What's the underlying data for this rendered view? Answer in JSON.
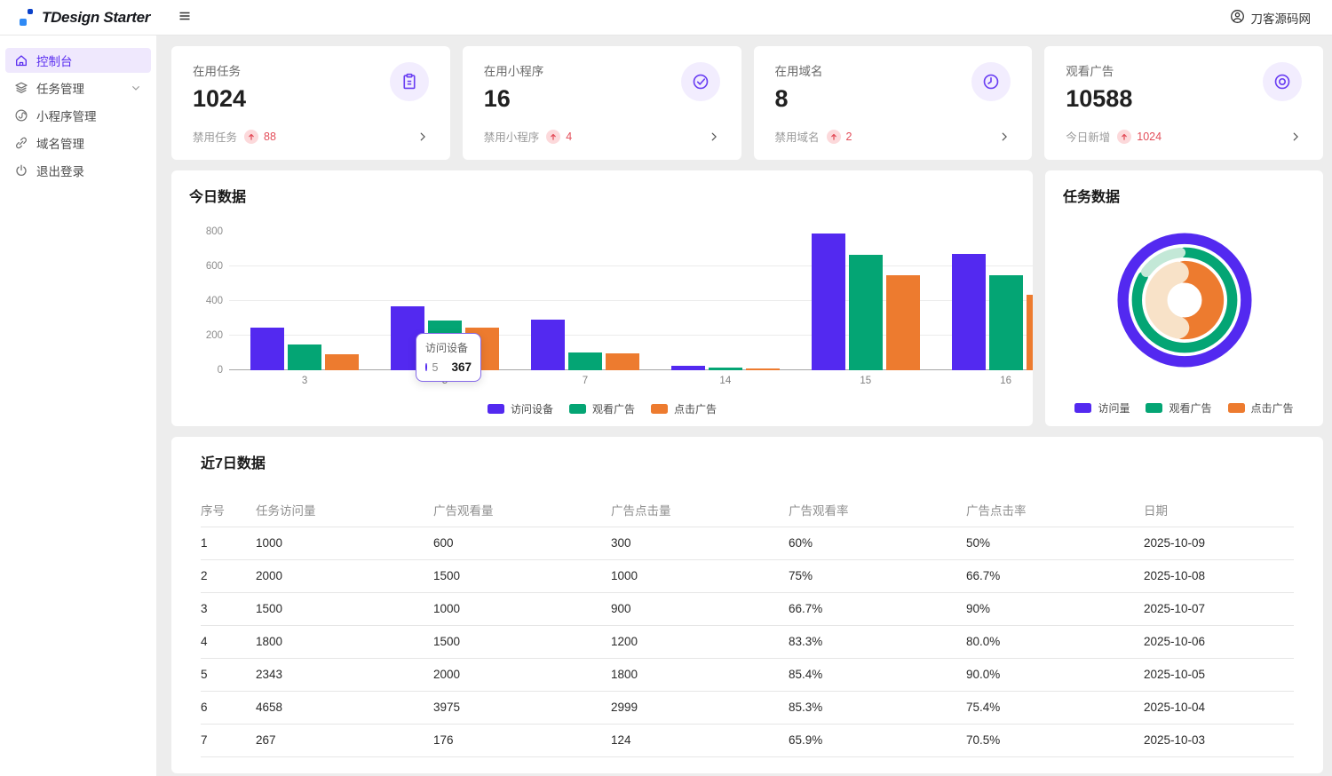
{
  "header": {
    "logo_text": "TDesign Starter",
    "user_name": "刀客源码网"
  },
  "sidebar": {
    "items": [
      {
        "label": "控制台",
        "icon": "home-icon",
        "active": true,
        "has_chevron": false
      },
      {
        "label": "任务管理",
        "icon": "layers-icon",
        "active": false,
        "has_chevron": true
      },
      {
        "label": "小程序管理",
        "icon": "miniprogram-icon",
        "active": false,
        "has_chevron": false
      },
      {
        "label": "域名管理",
        "icon": "link-icon",
        "active": false,
        "has_chevron": false
      },
      {
        "label": "退出登录",
        "icon": "power-icon",
        "active": false,
        "has_chevron": false
      }
    ]
  },
  "stat_cards": [
    {
      "label": "在用任务",
      "value": "1024",
      "footer_label": "禁用任务",
      "trend_value": "88",
      "icon": "clipboard-icon"
    },
    {
      "label": "在用小程序",
      "value": "16",
      "footer_label": "禁用小程序",
      "trend_value": "4",
      "icon": "check-circle-icon"
    },
    {
      "label": "在用域名",
      "value": "8",
      "footer_label": "禁用域名",
      "trend_value": "2",
      "icon": "clock-icon"
    },
    {
      "label": "观看广告",
      "value": "10588",
      "footer_label": "今日新增",
      "trend_value": "1024",
      "icon": "eye-icon"
    }
  ],
  "colors": {
    "purple": "#5329f0",
    "green": "#04a574",
    "orange": "#ed7b2f",
    "mint": "#c3e8d7",
    "peach": "#f8e2c8",
    "red": "#e34d59"
  },
  "bar_chart": {
    "title": "今日数据",
    "tooltip": {
      "title": "访问设备",
      "series": "5",
      "value": "367"
    }
  },
  "donut_chart": {
    "title": "任务数据"
  },
  "table": {
    "title": "近7日数据",
    "columns": [
      "序号",
      "任务访问量",
      "广告观看量",
      "广告点击量",
      "广告观看率",
      "广告点击率",
      "日期"
    ],
    "rows": [
      [
        "1",
        "1000",
        "600",
        "300",
        "60%",
        "50%",
        "2025-10-09"
      ],
      [
        "2",
        "2000",
        "1500",
        "1000",
        "75%",
        "66.7%",
        "2025-10-08"
      ],
      [
        "3",
        "1500",
        "1000",
        "900",
        "66.7%",
        "90%",
        "2025-10-07"
      ],
      [
        "4",
        "1800",
        "1500",
        "1200",
        "83.3%",
        "80.0%",
        "2025-10-06"
      ],
      [
        "5",
        "2343",
        "2000",
        "1800",
        "85.4%",
        "90.0%",
        "2025-10-05"
      ],
      [
        "6",
        "4658",
        "3975",
        "2999",
        "85.3%",
        "75.4%",
        "2025-10-04"
      ],
      [
        "7",
        "267",
        "176",
        "124",
        "65.9%",
        "70.5%",
        "2025-10-03"
      ]
    ]
  },
  "chart_data": [
    {
      "type": "bar",
      "title": "今日数据",
      "categories": [
        "3",
        "5",
        "7",
        "14",
        "15",
        "16"
      ],
      "series": [
        {
          "name": "访问设备",
          "color_key": "purple",
          "values": [
            245,
            367,
            290,
            25,
            790,
            670
          ]
        },
        {
          "name": "观看广告",
          "color_key": "green",
          "values": [
            148,
            285,
            103,
            15,
            665,
            550
          ]
        },
        {
          "name": "点击广告",
          "color_key": "orange",
          "values": [
            90,
            245,
            100,
            10,
            550,
            437
          ]
        }
      ],
      "xlabel": "",
      "ylabel": "",
      "ylim": [
        0,
        800
      ],
      "yticks": [
        0,
        200,
        400,
        600,
        800
      ],
      "grid": true,
      "legend_position": "bottom"
    },
    {
      "type": "pie",
      "title": "任务数据",
      "legend": [
        {
          "name": "访问量",
          "color_key": "purple"
        },
        {
          "name": "观看广告",
          "color_key": "green"
        },
        {
          "name": "点击广告",
          "color_key": "orange"
        }
      ],
      "rings": [
        {
          "name": "访问量",
          "radius": 73,
          "width": 13,
          "segments": [
            {
              "pct_start": 0,
              "pct_end": 100,
              "color_key": "purple"
            }
          ]
        },
        {
          "name": "观看广告",
          "radius": 56.5,
          "width": 12,
          "segments": [
            {
              "pct_start": 0,
              "pct_end": 83,
              "color_key": "green"
            },
            {
              "pct_start": 85,
              "pct_end": 98.5,
              "color_key": "mint"
            }
          ]
        },
        {
          "name": "点击广告",
          "radius": 33.5,
          "width": 26,
          "segments": [
            {
              "pct_start": 0,
              "pct_end": 51,
              "color_key": "orange"
            },
            {
              "pct_start": 53.5,
              "pct_end": 96,
              "color_key": "peach"
            }
          ]
        }
      ],
      "legend_position": "bottom"
    }
  ]
}
